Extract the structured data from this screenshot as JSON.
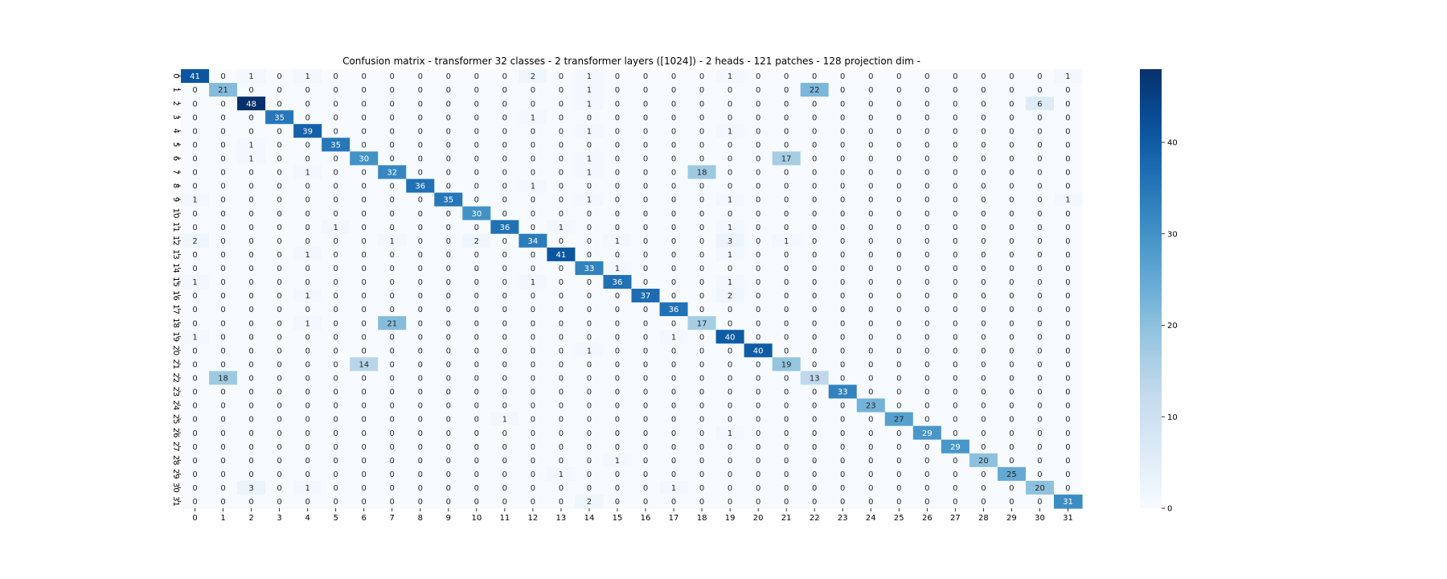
{
  "chart_data": {
    "type": "heatmap",
    "title": "Confusion matrix - transformer 32 classes - 2 transformer layers ([1024]) - 2 heads - 121 patches - 128 projection dim -",
    "xlabel": "",
    "ylabel": "",
    "x_categories": [
      "0",
      "1",
      "2",
      "3",
      "4",
      "5",
      "6",
      "7",
      "8",
      "9",
      "10",
      "11",
      "12",
      "13",
      "14",
      "15",
      "16",
      "17",
      "18",
      "19",
      "20",
      "21",
      "22",
      "23",
      "24",
      "25",
      "26",
      "27",
      "28",
      "29",
      "30",
      "31"
    ],
    "y_categories": [
      "0",
      "1",
      "2",
      "3",
      "4",
      "5",
      "6",
      "7",
      "8",
      "9",
      "10",
      "11",
      "12",
      "13",
      "14",
      "15",
      "16",
      "17",
      "18",
      "19",
      "20",
      "21",
      "22",
      "23",
      "24",
      "25",
      "26",
      "27",
      "28",
      "29",
      "30",
      "31"
    ],
    "values": [
      [
        41,
        0,
        1,
        0,
        1,
        0,
        0,
        0,
        0,
        0,
        0,
        0,
        2,
        0,
        1,
        0,
        0,
        0,
        0,
        1,
        0,
        0,
        0,
        0,
        0,
        0,
        0,
        0,
        0,
        0,
        0,
        1
      ],
      [
        0,
        21,
        0,
        0,
        0,
        0,
        0,
        0,
        0,
        0,
        0,
        0,
        0,
        0,
        1,
        0,
        0,
        0,
        0,
        0,
        0,
        0,
        22,
        0,
        0,
        0,
        0,
        0,
        0,
        0,
        0,
        0
      ],
      [
        0,
        0,
        48,
        0,
        0,
        0,
        0,
        0,
        0,
        0,
        0,
        0,
        0,
        0,
        1,
        0,
        0,
        0,
        0,
        0,
        0,
        0,
        0,
        0,
        0,
        0,
        0,
        0,
        0,
        0,
        6,
        0
      ],
      [
        0,
        0,
        0,
        35,
        0,
        0,
        0,
        0,
        0,
        0,
        0,
        0,
        1,
        0,
        0,
        0,
        0,
        0,
        0,
        0,
        0,
        0,
        0,
        0,
        0,
        0,
        0,
        0,
        0,
        0,
        0,
        0
      ],
      [
        0,
        0,
        0,
        0,
        39,
        0,
        0,
        0,
        0,
        0,
        0,
        0,
        0,
        0,
        1,
        0,
        0,
        0,
        0,
        1,
        0,
        0,
        0,
        0,
        0,
        0,
        0,
        0,
        0,
        0,
        0,
        0
      ],
      [
        0,
        0,
        1,
        0,
        0,
        35,
        0,
        0,
        0,
        0,
        0,
        0,
        0,
        0,
        0,
        0,
        0,
        0,
        0,
        0,
        0,
        0,
        0,
        0,
        0,
        0,
        0,
        0,
        0,
        0,
        0,
        0
      ],
      [
        0,
        0,
        1,
        0,
        0,
        0,
        30,
        0,
        0,
        0,
        0,
        0,
        0,
        0,
        1,
        0,
        0,
        0,
        0,
        0,
        0,
        17,
        0,
        0,
        0,
        0,
        0,
        0,
        0,
        0,
        0,
        0
      ],
      [
        0,
        0,
        0,
        0,
        1,
        0,
        0,
        32,
        0,
        0,
        0,
        0,
        0,
        0,
        1,
        0,
        0,
        0,
        18,
        0,
        0,
        0,
        0,
        0,
        0,
        0,
        0,
        0,
        0,
        0,
        0,
        0
      ],
      [
        0,
        0,
        0,
        0,
        0,
        0,
        0,
        0,
        36,
        0,
        0,
        0,
        1,
        0,
        0,
        0,
        0,
        0,
        0,
        0,
        0,
        0,
        0,
        0,
        0,
        0,
        0,
        0,
        0,
        0,
        0,
        0
      ],
      [
        1,
        0,
        0,
        0,
        0,
        0,
        0,
        0,
        0,
        35,
        0,
        0,
        0,
        0,
        1,
        0,
        0,
        0,
        0,
        1,
        0,
        0,
        0,
        0,
        0,
        0,
        0,
        0,
        0,
        0,
        0,
        1
      ],
      [
        0,
        0,
        0,
        0,
        0,
        0,
        0,
        0,
        0,
        0,
        30,
        0,
        0,
        0,
        0,
        0,
        0,
        0,
        0,
        0,
        0,
        0,
        0,
        0,
        0,
        0,
        0,
        0,
        0,
        0,
        0,
        0
      ],
      [
        0,
        0,
        0,
        0,
        0,
        1,
        0,
        0,
        0,
        0,
        0,
        36,
        0,
        1,
        0,
        0,
        0,
        0,
        0,
        1,
        0,
        0,
        0,
        0,
        0,
        0,
        0,
        0,
        0,
        0,
        0,
        0
      ],
      [
        2,
        0,
        0,
        0,
        0,
        0,
        0,
        1,
        0,
        0,
        2,
        0,
        34,
        0,
        0,
        1,
        0,
        0,
        0,
        3,
        0,
        1,
        0,
        0,
        0,
        0,
        0,
        0,
        0,
        0,
        0,
        0
      ],
      [
        0,
        0,
        0,
        0,
        1,
        0,
        0,
        0,
        0,
        0,
        0,
        0,
        0,
        41,
        0,
        0,
        0,
        0,
        0,
        1,
        0,
        0,
        0,
        0,
        0,
        0,
        0,
        0,
        0,
        0,
        0,
        0
      ],
      [
        0,
        0,
        0,
        0,
        0,
        0,
        0,
        0,
        0,
        0,
        0,
        0,
        0,
        0,
        33,
        1,
        0,
        0,
        0,
        0,
        0,
        0,
        0,
        0,
        0,
        0,
        0,
        0,
        0,
        0,
        0,
        0
      ],
      [
        1,
        0,
        0,
        0,
        0,
        0,
        0,
        0,
        0,
        0,
        0,
        0,
        1,
        0,
        0,
        36,
        0,
        0,
        0,
        1,
        0,
        0,
        0,
        0,
        0,
        0,
        0,
        0,
        0,
        0,
        0,
        0
      ],
      [
        0,
        0,
        0,
        0,
        1,
        0,
        0,
        0,
        0,
        0,
        0,
        0,
        0,
        0,
        0,
        0,
        37,
        0,
        0,
        2,
        0,
        0,
        0,
        0,
        0,
        0,
        0,
        0,
        0,
        0,
        0,
        0
      ],
      [
        0,
        0,
        0,
        0,
        0,
        0,
        0,
        0,
        0,
        0,
        0,
        0,
        0,
        0,
        0,
        0,
        0,
        36,
        0,
        0,
        0,
        0,
        0,
        0,
        0,
        0,
        0,
        0,
        0,
        0,
        0,
        0
      ],
      [
        0,
        0,
        0,
        0,
        1,
        0,
        0,
        21,
        0,
        0,
        0,
        0,
        0,
        0,
        0,
        0,
        0,
        0,
        17,
        0,
        0,
        0,
        0,
        0,
        0,
        0,
        0,
        0,
        0,
        0,
        0,
        0
      ],
      [
        1,
        0,
        0,
        0,
        0,
        0,
        0,
        0,
        0,
        0,
        0,
        0,
        0,
        0,
        0,
        0,
        0,
        1,
        0,
        40,
        0,
        0,
        0,
        0,
        0,
        0,
        0,
        0,
        0,
        0,
        0,
        0
      ],
      [
        0,
        0,
        0,
        0,
        0,
        0,
        0,
        0,
        0,
        0,
        0,
        0,
        0,
        0,
        1,
        0,
        0,
        0,
        0,
        0,
        40,
        0,
        0,
        0,
        0,
        0,
        0,
        0,
        0,
        0,
        0,
        0
      ],
      [
        0,
        0,
        0,
        0,
        0,
        0,
        14,
        0,
        0,
        0,
        0,
        0,
        0,
        0,
        0,
        0,
        0,
        0,
        0,
        0,
        0,
        19,
        0,
        0,
        0,
        0,
        0,
        0,
        0,
        0,
        0,
        0
      ],
      [
        0,
        18,
        0,
        0,
        0,
        0,
        0,
        0,
        0,
        0,
        0,
        0,
        0,
        0,
        0,
        0,
        0,
        0,
        0,
        0,
        0,
        0,
        13,
        0,
        0,
        0,
        0,
        0,
        0,
        0,
        0,
        0
      ],
      [
        0,
        0,
        0,
        0,
        0,
        0,
        0,
        0,
        0,
        0,
        0,
        0,
        0,
        0,
        0,
        0,
        0,
        0,
        0,
        0,
        0,
        0,
        0,
        33,
        0,
        0,
        0,
        0,
        0,
        0,
        0,
        0
      ],
      [
        0,
        0,
        0,
        0,
        0,
        0,
        0,
        0,
        0,
        0,
        0,
        0,
        0,
        0,
        0,
        0,
        0,
        0,
        0,
        0,
        0,
        0,
        0,
        0,
        23,
        0,
        0,
        0,
        0,
        0,
        0,
        0
      ],
      [
        0,
        0,
        0,
        0,
        0,
        0,
        0,
        0,
        0,
        0,
        0,
        1,
        0,
        0,
        0,
        0,
        0,
        0,
        0,
        0,
        0,
        0,
        0,
        0,
        0,
        27,
        0,
        0,
        0,
        0,
        0,
        0
      ],
      [
        0,
        0,
        0,
        0,
        0,
        0,
        0,
        0,
        0,
        0,
        0,
        0,
        0,
        0,
        0,
        0,
        0,
        0,
        0,
        1,
        0,
        0,
        0,
        0,
        0,
        0,
        29,
        0,
        0,
        0,
        0,
        0
      ],
      [
        0,
        0,
        0,
        0,
        0,
        0,
        0,
        0,
        0,
        0,
        0,
        0,
        0,
        0,
        0,
        0,
        0,
        0,
        0,
        0,
        0,
        0,
        0,
        0,
        0,
        0,
        0,
        29,
        0,
        0,
        0,
        0
      ],
      [
        0,
        0,
        0,
        0,
        0,
        0,
        0,
        0,
        0,
        0,
        0,
        0,
        0,
        0,
        0,
        1,
        0,
        0,
        0,
        0,
        0,
        0,
        0,
        0,
        0,
        0,
        0,
        0,
        20,
        0,
        0,
        0
      ],
      [
        0,
        0,
        0,
        0,
        0,
        0,
        0,
        0,
        0,
        0,
        0,
        0,
        0,
        1,
        0,
        0,
        0,
        0,
        0,
        0,
        0,
        0,
        0,
        0,
        0,
        0,
        0,
        0,
        0,
        25,
        0,
        0
      ],
      [
        0,
        0,
        3,
        0,
        1,
        0,
        0,
        0,
        0,
        0,
        0,
        0,
        0,
        0,
        0,
        0,
        0,
        1,
        0,
        0,
        0,
        0,
        0,
        0,
        0,
        0,
        0,
        0,
        0,
        0,
        20,
        0
      ],
      [
        0,
        0,
        0,
        0,
        0,
        0,
        0,
        0,
        0,
        0,
        0,
        0,
        0,
        0,
        2,
        0,
        0,
        0,
        0,
        0,
        0,
        0,
        0,
        0,
        0,
        0,
        0,
        0,
        0,
        0,
        0,
        31
      ]
    ],
    "colormap": "Blues",
    "color_low": "#f7fbff",
    "color_high": "#08306b",
    "vmin": 0,
    "vmax": 48,
    "colorbar_ticks": [
      0,
      10,
      20,
      30,
      40
    ],
    "annotated": true,
    "grid": false,
    "legend": "colorbar-right"
  }
}
